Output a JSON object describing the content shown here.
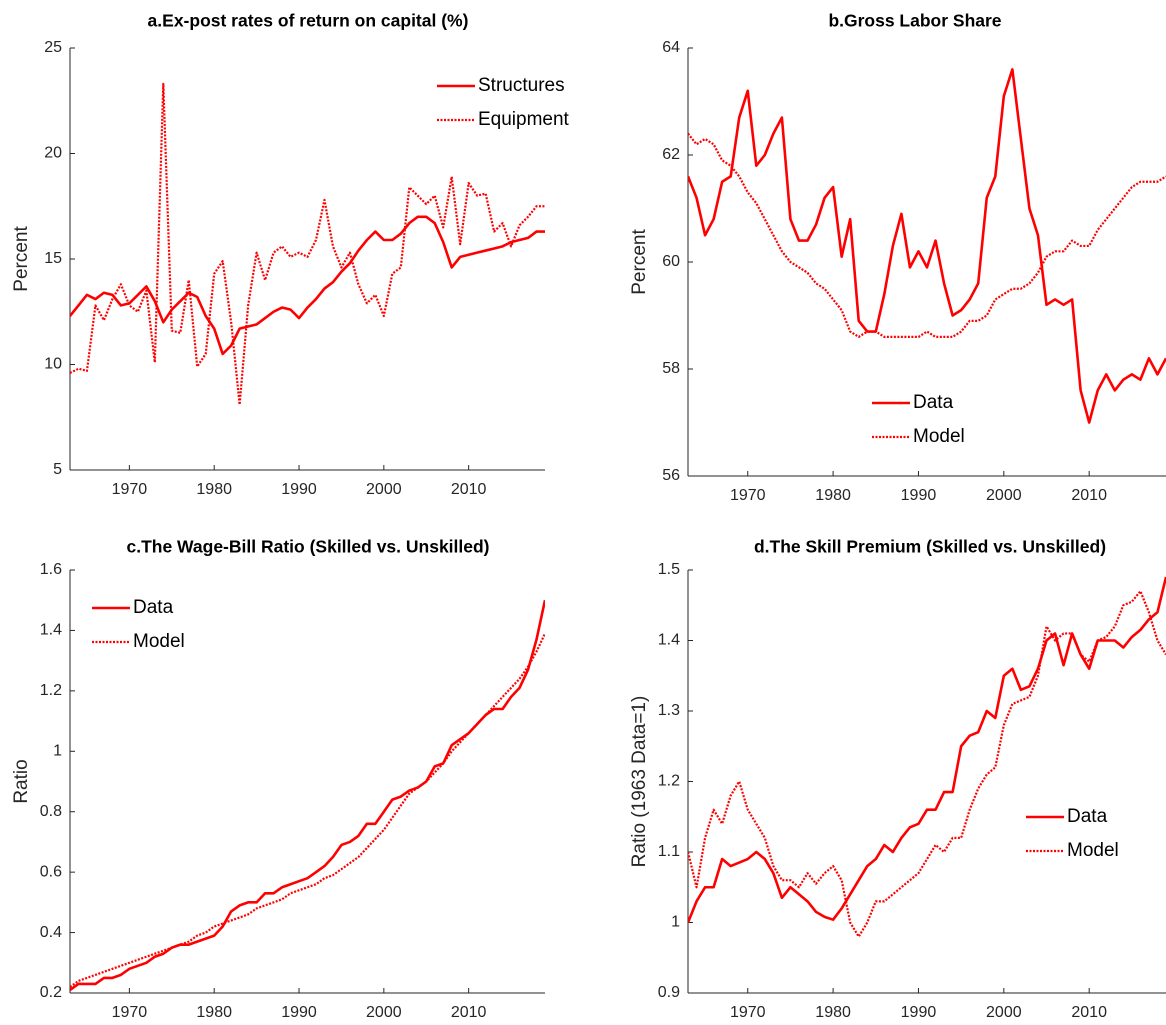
{
  "chart_data": [
    {
      "type": "line",
      "title": "a.Ex-post rates of return on capital (%)",
      "ylabel": "Percent",
      "x": [
        1963,
        1964,
        1965,
        1966,
        1967,
        1968,
        1969,
        1970,
        1971,
        1972,
        1973,
        1974,
        1975,
        1976,
        1977,
        1978,
        1979,
        1980,
        1981,
        1982,
        1983,
        1984,
        1985,
        1986,
        1987,
        1988,
        1989,
        1990,
        1991,
        1992,
        1993,
        1994,
        1995,
        1996,
        1997,
        1998,
        1999,
        2000,
        2001,
        2002,
        2003,
        2004,
        2005,
        2006,
        2007,
        2008,
        2009,
        2010,
        2011,
        2012,
        2013,
        2014,
        2015,
        2016,
        2017,
        2018,
        2019
      ],
      "xlim": [
        1963,
        2019
      ],
      "xticks": [
        1970,
        1980,
        1990,
        2000,
        2010
      ],
      "ylim": [
        5,
        25
      ],
      "yticks": [
        5,
        10,
        15,
        20,
        25
      ],
      "legend_location": "northeast",
      "series": [
        {
          "name": "Structures",
          "color": "#ff0000",
          "dash": "solid",
          "values": [
            12.3,
            12.8,
            13.3,
            13.1,
            13.4,
            13.3,
            12.8,
            12.9,
            13.3,
            13.7,
            13.0,
            12.0,
            12.6,
            13.0,
            13.4,
            13.2,
            12.3,
            11.7,
            10.5,
            10.9,
            11.7,
            11.8,
            11.9,
            12.2,
            12.5,
            12.7,
            12.6,
            12.2,
            12.7,
            13.1,
            13.6,
            13.9,
            14.4,
            14.8,
            15.4,
            15.9,
            16.3,
            15.9,
            15.9,
            16.2,
            16.7,
            17.0,
            17.0,
            16.7,
            15.8,
            14.6,
            15.1,
            15.2,
            15.3,
            15.4,
            15.5,
            15.6,
            15.8,
            15.9,
            16.0,
            16.3,
            16.3
          ]
        },
        {
          "name": "Equipment",
          "color": "#ff0000",
          "dash": "dotted",
          "values": [
            9.6,
            9.8,
            9.7,
            12.8,
            12.1,
            13.1,
            13.8,
            12.8,
            12.5,
            13.5,
            10.1,
            23.3,
            11.6,
            11.5,
            14.0,
            9.9,
            10.5,
            14.3,
            14.9,
            12.0,
            8.1,
            12.8,
            15.3,
            14.0,
            15.3,
            15.6,
            15.1,
            15.3,
            15.1,
            15.9,
            17.8,
            15.6,
            14.6,
            15.3,
            13.8,
            12.9,
            13.3,
            12.3,
            14.3,
            14.6,
            18.4,
            18.0,
            17.6,
            18.0,
            16.5,
            18.9,
            15.7,
            18.6,
            18.0,
            18.1,
            16.3,
            16.7,
            15.6,
            16.6,
            17.0,
            17.5,
            17.5
          ]
        }
      ]
    },
    {
      "type": "line",
      "title": "b.Gross Labor Share",
      "ylabel": "Percent",
      "x": [
        1963,
        1964,
        1965,
        1966,
        1967,
        1968,
        1969,
        1970,
        1971,
        1972,
        1973,
        1974,
        1975,
        1976,
        1977,
        1978,
        1979,
        1980,
        1981,
        1982,
        1983,
        1984,
        1985,
        1986,
        1987,
        1988,
        1989,
        1990,
        1991,
        1992,
        1993,
        1994,
        1995,
        1996,
        1997,
        1998,
        1999,
        2000,
        2001,
        2002,
        2003,
        2004,
        2005,
        2006,
        2007,
        2008,
        2009,
        2010,
        2011,
        2012,
        2013,
        2014,
        2015,
        2016,
        2017,
        2018,
        2019
      ],
      "xlim": [
        1963,
        2019
      ],
      "xticks": [
        1970,
        1980,
        1990,
        2000,
        2010
      ],
      "ylim": [
        56,
        64
      ],
      "yticks": [
        56,
        58,
        60,
        62,
        64
      ],
      "legend_location": "south",
      "series": [
        {
          "name": "Data",
          "color": "#ff0000",
          "dash": "solid",
          "values": [
            61.6,
            61.2,
            60.5,
            60.8,
            61.5,
            61.6,
            62.7,
            63.2,
            61.8,
            62.0,
            62.4,
            62.7,
            60.8,
            60.4,
            60.4,
            60.7,
            61.2,
            61.4,
            60.1,
            60.8,
            58.9,
            58.7,
            58.7,
            59.4,
            60.3,
            60.9,
            59.9,
            60.2,
            59.9,
            60.4,
            59.6,
            59.0,
            59.1,
            59.3,
            59.6,
            61.2,
            61.6,
            63.1,
            63.6,
            62.3,
            61.0,
            60.5,
            59.2,
            59.3,
            59.2,
            59.3,
            57.6,
            57.0,
            57.6,
            57.9,
            57.6,
            57.8,
            57.9,
            57.8,
            58.2,
            57.9,
            58.2
          ]
        },
        {
          "name": "Model",
          "color": "#ff0000",
          "dash": "dotted",
          "values": [
            62.4,
            62.2,
            62.3,
            62.2,
            61.9,
            61.8,
            61.6,
            61.3,
            61.1,
            60.8,
            60.5,
            60.2,
            60.0,
            59.9,
            59.8,
            59.6,
            59.5,
            59.3,
            59.1,
            58.7,
            58.6,
            58.7,
            58.7,
            58.6,
            58.6,
            58.6,
            58.6,
            58.6,
            58.7,
            58.6,
            58.6,
            58.6,
            58.7,
            58.9,
            58.9,
            59.0,
            59.3,
            59.4,
            59.5,
            59.5,
            59.6,
            59.8,
            60.1,
            60.2,
            60.2,
            60.4,
            60.3,
            60.3,
            60.6,
            60.8,
            61.0,
            61.2,
            61.4,
            61.5,
            61.5,
            61.5,
            61.6
          ]
        }
      ]
    },
    {
      "type": "line",
      "title": "c.The Wage-Bill Ratio (Skilled vs. Unskilled)",
      "ylabel": "Ratio",
      "x": [
        1963,
        1964,
        1965,
        1966,
        1967,
        1968,
        1969,
        1970,
        1971,
        1972,
        1973,
        1974,
        1975,
        1976,
        1977,
        1978,
        1979,
        1980,
        1981,
        1982,
        1983,
        1984,
        1985,
        1986,
        1987,
        1988,
        1989,
        1990,
        1991,
        1992,
        1993,
        1994,
        1995,
        1996,
        1997,
        1998,
        1999,
        2000,
        2001,
        2002,
        2003,
        2004,
        2005,
        2006,
        2007,
        2008,
        2009,
        2010,
        2011,
        2012,
        2013,
        2014,
        2015,
        2016,
        2017,
        2018,
        2019
      ],
      "xlim": [
        1963,
        2019
      ],
      "xticks": [
        1970,
        1980,
        1990,
        2000,
        2010
      ],
      "ylim": [
        0.2,
        1.6
      ],
      "yticks": [
        0.2,
        0.4,
        0.6,
        0.8,
        1,
        1.2,
        1.4,
        1.6
      ],
      "legend_location": "northwest",
      "series": [
        {
          "name": "Data",
          "color": "#ff0000",
          "dash": "solid",
          "values": [
            0.21,
            0.23,
            0.23,
            0.23,
            0.25,
            0.25,
            0.26,
            0.28,
            0.29,
            0.3,
            0.32,
            0.33,
            0.35,
            0.36,
            0.36,
            0.37,
            0.38,
            0.39,
            0.42,
            0.47,
            0.49,
            0.5,
            0.5,
            0.53,
            0.53,
            0.55,
            0.56,
            0.57,
            0.58,
            0.6,
            0.62,
            0.65,
            0.69,
            0.7,
            0.72,
            0.76,
            0.76,
            0.8,
            0.84,
            0.85,
            0.87,
            0.88,
            0.9,
            0.95,
            0.96,
            1.02,
            1.04,
            1.06,
            1.09,
            1.12,
            1.14,
            1.14,
            1.18,
            1.21,
            1.27,
            1.37,
            1.5
          ]
        },
        {
          "name": "Model",
          "color": "#ff0000",
          "dash": "dotted",
          "values": [
            0.22,
            0.24,
            0.25,
            0.26,
            0.27,
            0.28,
            0.29,
            0.3,
            0.31,
            0.32,
            0.33,
            0.34,
            0.35,
            0.36,
            0.37,
            0.39,
            0.4,
            0.42,
            0.43,
            0.44,
            0.45,
            0.46,
            0.48,
            0.49,
            0.5,
            0.51,
            0.53,
            0.54,
            0.55,
            0.56,
            0.58,
            0.59,
            0.61,
            0.63,
            0.65,
            0.68,
            0.71,
            0.74,
            0.78,
            0.82,
            0.86,
            0.88,
            0.9,
            0.93,
            0.96,
            1.0,
            1.03,
            1.06,
            1.09,
            1.12,
            1.15,
            1.18,
            1.21,
            1.24,
            1.28,
            1.33,
            1.39
          ]
        }
      ]
    },
    {
      "type": "line",
      "title": "d.The Skill Premium (Skilled vs. Unskilled)",
      "ylabel": "Ratio (1963 Data=1)",
      "x": [
        1963,
        1964,
        1965,
        1966,
        1967,
        1968,
        1969,
        1970,
        1971,
        1972,
        1973,
        1974,
        1975,
        1976,
        1977,
        1978,
        1979,
        1980,
        1981,
        1982,
        1983,
        1984,
        1985,
        1986,
        1987,
        1988,
        1989,
        1990,
        1991,
        1992,
        1993,
        1994,
        1995,
        1996,
        1997,
        1998,
        1999,
        2000,
        2001,
        2002,
        2003,
        2004,
        2005,
        2006,
        2007,
        2008,
        2009,
        2010,
        2011,
        2012,
        2013,
        2014,
        2015,
        2016,
        2017,
        2018,
        2019
      ],
      "xlim": [
        1963,
        2019
      ],
      "xticks": [
        1970,
        1980,
        1990,
        2000,
        2010
      ],
      "ylim": [
        0.9,
        1.5
      ],
      "yticks": [
        0.9,
        1,
        1.1,
        1.2,
        1.3,
        1.4,
        1.5
      ],
      "legend_location": "southeast",
      "series": [
        {
          "name": "Data",
          "color": "#ff0000",
          "dash": "solid",
          "values": [
            1.0,
            1.03,
            1.05,
            1.05,
            1.09,
            1.08,
            1.085,
            1.09,
            1.1,
            1.09,
            1.07,
            1.035,
            1.05,
            1.04,
            1.03,
            1.015,
            1.008,
            1.004,
            1.02,
            1.04,
            1.06,
            1.08,
            1.09,
            1.11,
            1.1,
            1.12,
            1.135,
            1.14,
            1.16,
            1.16,
            1.185,
            1.185,
            1.25,
            1.265,
            1.27,
            1.3,
            1.29,
            1.35,
            1.36,
            1.33,
            1.335,
            1.36,
            1.4,
            1.41,
            1.365,
            1.41,
            1.38,
            1.36,
            1.4,
            1.4,
            1.4,
            1.39,
            1.405,
            1.415,
            1.43,
            1.44,
            1.49
          ]
        },
        {
          "name": "Model",
          "color": "#ff0000",
          "dash": "dotted",
          "values": [
            1.1,
            1.05,
            1.12,
            1.16,
            1.14,
            1.18,
            1.2,
            1.16,
            1.14,
            1.12,
            1.08,
            1.06,
            1.06,
            1.05,
            1.07,
            1.055,
            1.07,
            1.08,
            1.06,
            1.0,
            0.98,
            1.0,
            1.03,
            1.03,
            1.04,
            1.05,
            1.06,
            1.07,
            1.09,
            1.11,
            1.1,
            1.12,
            1.12,
            1.16,
            1.19,
            1.21,
            1.22,
            1.28,
            1.31,
            1.315,
            1.32,
            1.35,
            1.42,
            1.4,
            1.41,
            1.41,
            1.38,
            1.37,
            1.4,
            1.405,
            1.42,
            1.45,
            1.455,
            1.47,
            1.44,
            1.4,
            1.38
          ]
        }
      ]
    }
  ]
}
